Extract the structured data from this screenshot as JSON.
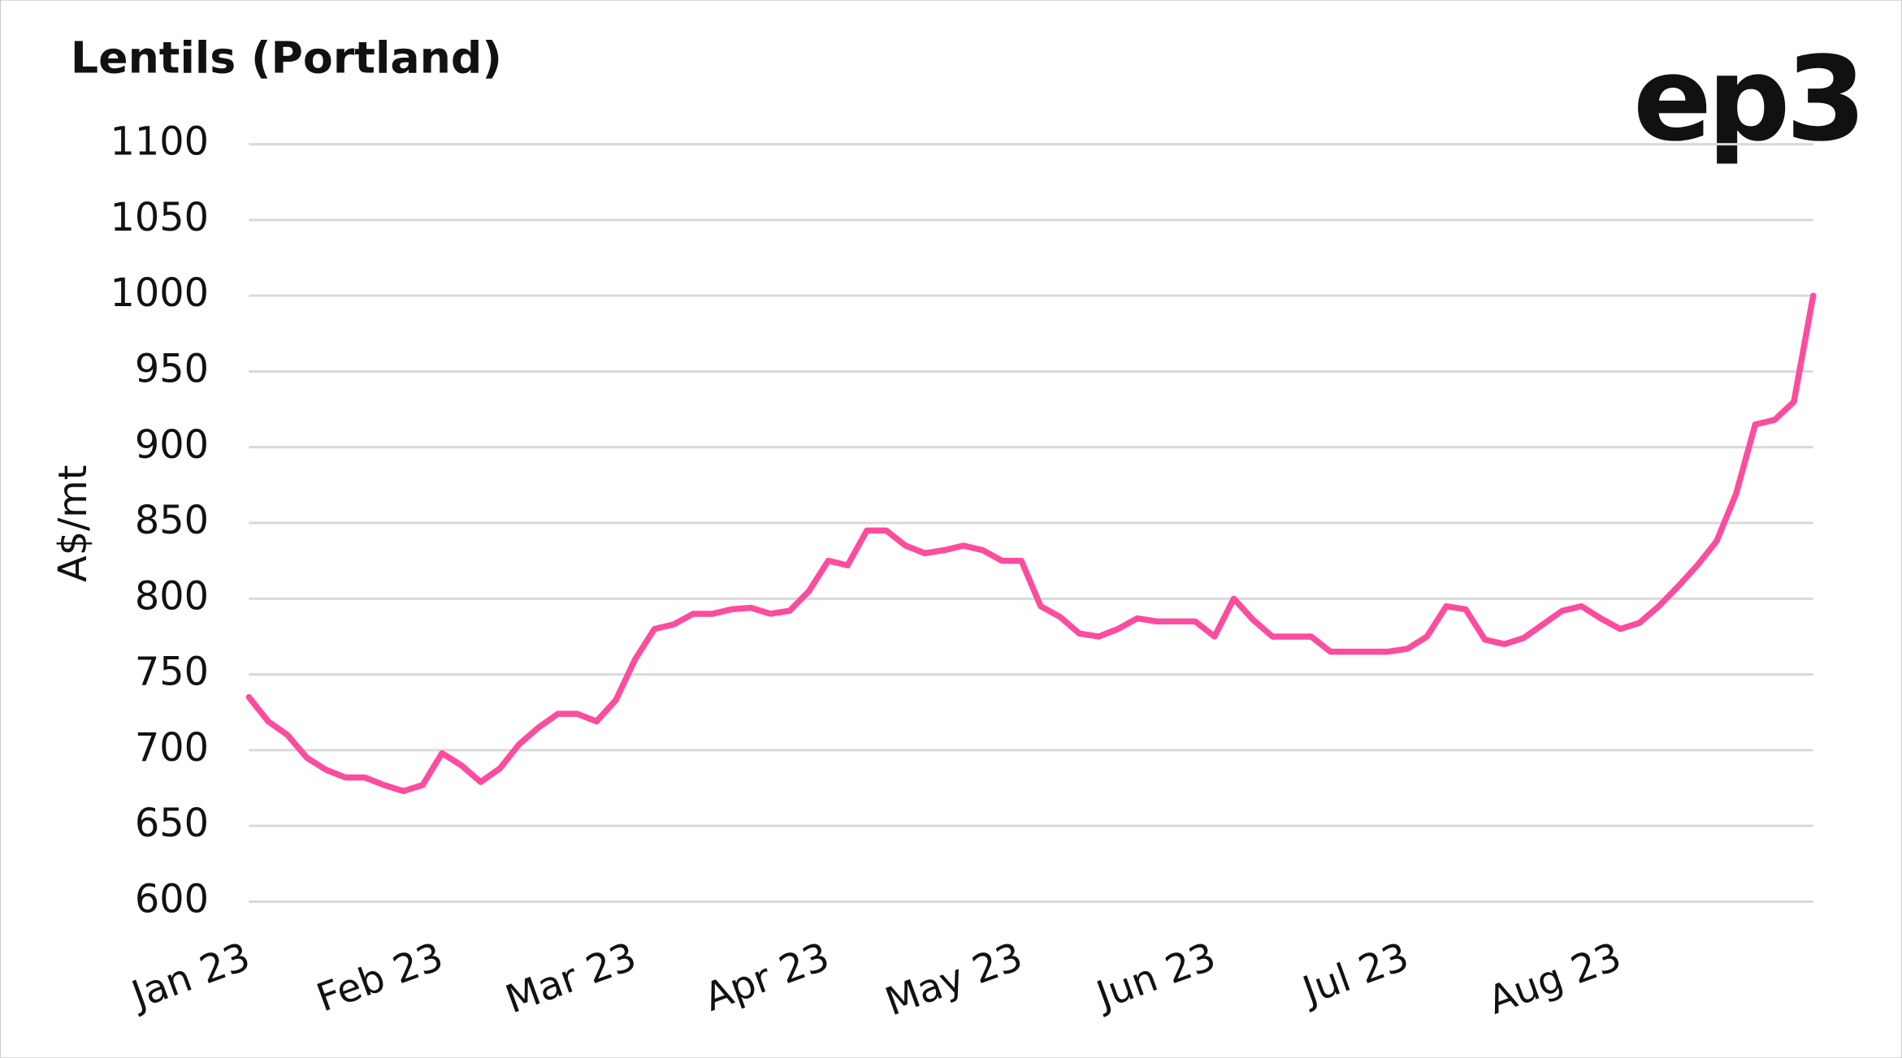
{
  "chart_data": {
    "type": "line",
    "title": "Lentils (Portland)",
    "logo": "ep3",
    "y_label": "A$/mt",
    "color": "#fc4c9e",
    "grid": true,
    "ylim": [
      600,
      1100
    ],
    "yticks": [
      600,
      650,
      700,
      750,
      800,
      850,
      900,
      950,
      1000,
      1050,
      1100
    ],
    "categories": [
      "Jan 23",
      null,
      null,
      null,
      null,
      null,
      null,
      null,
      null,
      null,
      "Feb 23",
      null,
      null,
      null,
      null,
      null,
      null,
      null,
      null,
      null,
      "Mar 23",
      null,
      null,
      null,
      null,
      null,
      null,
      null,
      null,
      null,
      "Apr 23",
      null,
      null,
      null,
      null,
      null,
      null,
      null,
      null,
      null,
      "May 23",
      null,
      null,
      null,
      null,
      null,
      null,
      null,
      null,
      null,
      "Jun 23",
      null,
      null,
      null,
      null,
      null,
      null,
      null,
      null,
      null,
      "Jul 23",
      null,
      null,
      null,
      null,
      null,
      null,
      null,
      null,
      null,
      null,
      "Aug 23",
      null,
      null,
      null,
      null,
      null,
      null,
      null,
      null,
      null,
      null
    ],
    "values": [
      735,
      719,
      710,
      695,
      687,
      682,
      682,
      677,
      673,
      677,
      698,
      690,
      679,
      688,
      704,
      715,
      724,
      724,
      719,
      733,
      760,
      780,
      783,
      790,
      790,
      793,
      794,
      790,
      792,
      805,
      825,
      822,
      845,
      845,
      835,
      830,
      832,
      835,
      832,
      825,
      825,
      795,
      788,
      777,
      775,
      780,
      787,
      785,
      785,
      785,
      775,
      800,
      786,
      775,
      775,
      775,
      765,
      765,
      765,
      765,
      767,
      775,
      795,
      793,
      773,
      770,
      774,
      783,
      792,
      795,
      787,
      780,
      784,
      795,
      808,
      822,
      838,
      869,
      915,
      918,
      930,
      1000
    ]
  }
}
